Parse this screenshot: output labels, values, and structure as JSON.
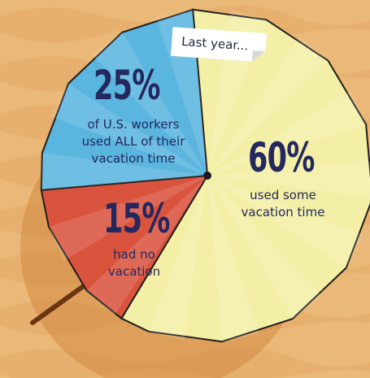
{
  "note": "Last year...",
  "chart_data": {
    "type": "pie",
    "unit": "%",
    "slices": [
      {
        "value": 60,
        "value_label": "60%",
        "label": "used some vacation time",
        "lines": [
          "used some",
          "vacation time"
        ],
        "color": "#f3efa6"
      },
      {
        "value": 15,
        "value_label": "15%",
        "label": "had no vacation",
        "lines": [
          "had no",
          "vacation"
        ],
        "color": "#d9533d"
      },
      {
        "value": 25,
        "value_label": "25%",
        "label": "of U.S. workers used ALL of their vacation time",
        "lines": [
          "of U.S. workers",
          "used ALL of their",
          "vacation time"
        ],
        "color": "#5ab5df"
      }
    ]
  }
}
